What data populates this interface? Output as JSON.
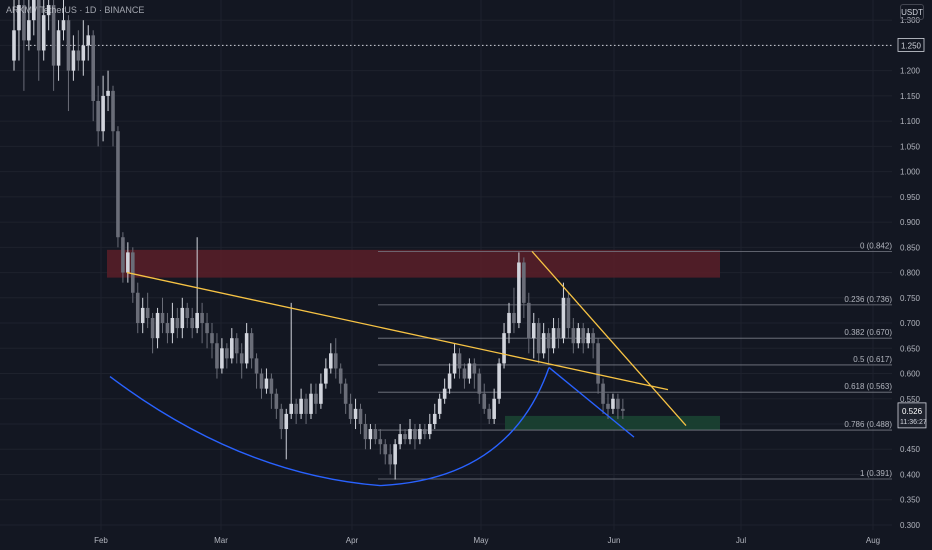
{
  "header": {
    "title": "ARKM / TetherUS · 1D · BINANCE",
    "unit": "USDT"
  },
  "colors": {
    "background": "#131722",
    "grid": "#1e222d",
    "up": "#d1d4dc",
    "down": "#6a6d78",
    "fib": "#787b86",
    "trendline": "#f7c344",
    "curve": "#2962ff",
    "resistance_zone": "#5a1f28",
    "support_zone": "#1b4332"
  },
  "chart_data": {
    "type": "candlestick",
    "x_ticks": [
      "Feb",
      "Mar",
      "Apr",
      "May",
      "Jun",
      "Jul",
      "Aug"
    ],
    "y_ticks": [
      "1.300",
      "1.250",
      "1.200",
      "1.150",
      "1.100",
      "1.050",
      "1.000",
      "0.950",
      "0.900",
      "0.850",
      "0.800",
      "0.750",
      "0.700",
      "0.650",
      "0.600",
      "0.550",
      "0.500",
      "0.450",
      "0.400",
      "0.350",
      "0.300"
    ],
    "ylim": [
      0.29,
      1.34
    ],
    "last_price": "0.526",
    "countdown": "11:36:27",
    "dotted_level": "1.250",
    "fib_levels": [
      {
        "label": "0 (0.842)",
        "value": 0.842
      },
      {
        "label": "0.236 (0.736)",
        "value": 0.736
      },
      {
        "label": "0.382 (0.670)",
        "value": 0.67
      },
      {
        "label": "0.5 (0.617)",
        "value": 0.617
      },
      {
        "label": "0.618 (0.563)",
        "value": 0.563
      },
      {
        "label": "0.786 (0.488)",
        "value": 0.488
      },
      {
        "label": "1 (0.391)",
        "value": 0.391
      }
    ],
    "resistance_zone": [
      0.79,
      0.845
    ],
    "support_zone": [
      0.488,
      0.516
    ],
    "candles": [
      [
        1.22,
        1.28,
        1.35,
        1.2
      ],
      [
        1.28,
        1.33,
        1.36,
        1.22
      ],
      [
        1.33,
        1.26,
        1.35,
        1.16
      ],
      [
        1.26,
        1.3,
        1.34,
        1.24
      ],
      [
        1.3,
        1.34,
        1.36,
        1.27
      ],
      [
        1.34,
        1.24,
        1.36,
        1.18
      ],
      [
        1.24,
        1.31,
        1.35,
        1.22
      ],
      [
        1.31,
        1.33,
        1.36,
        1.28
      ],
      [
        1.33,
        1.21,
        1.34,
        1.16
      ],
      [
        1.21,
        1.28,
        1.3,
        1.18
      ],
      [
        1.28,
        1.3,
        1.36,
        1.26
      ],
      [
        1.3,
        1.2,
        1.31,
        1.12
      ],
      [
        1.2,
        1.24,
        1.27,
        1.18
      ],
      [
        1.24,
        1.22,
        1.28,
        1.2
      ],
      [
        1.22,
        1.25,
        1.3,
        1.19
      ],
      [
        1.25,
        1.27,
        1.29,
        1.22
      ],
      [
        1.27,
        1.14,
        1.28,
        1.1
      ],
      [
        1.14,
        1.08,
        1.17,
        1.05
      ],
      [
        1.08,
        1.15,
        1.19,
        1.06
      ],
      [
        1.15,
        1.16,
        1.2,
        1.12
      ],
      [
        1.16,
        1.08,
        1.17,
        1.05
      ],
      [
        1.08,
        0.87,
        1.09,
        0.85
      ],
      [
        0.87,
        0.8,
        0.88,
        0.78
      ],
      [
        0.8,
        0.84,
        0.86,
        0.78
      ],
      [
        0.84,
        0.76,
        0.85,
        0.74
      ],
      [
        0.76,
        0.7,
        0.78,
        0.68
      ],
      [
        0.7,
        0.73,
        0.75,
        0.68
      ],
      [
        0.73,
        0.71,
        0.76,
        0.69
      ],
      [
        0.71,
        0.67,
        0.72,
        0.64
      ],
      [
        0.67,
        0.72,
        0.73,
        0.65
      ],
      [
        0.72,
        0.7,
        0.75,
        0.68
      ],
      [
        0.7,
        0.68,
        0.72,
        0.66
      ],
      [
        0.68,
        0.71,
        0.74,
        0.66
      ],
      [
        0.71,
        0.69,
        0.73,
        0.67
      ],
      [
        0.69,
        0.73,
        0.75,
        0.67
      ],
      [
        0.73,
        0.71,
        0.74,
        0.69
      ],
      [
        0.71,
        0.69,
        0.73,
        0.67
      ],
      [
        0.69,
        0.72,
        0.87,
        0.68
      ],
      [
        0.72,
        0.7,
        0.74,
        0.66
      ],
      [
        0.7,
        0.68,
        0.72,
        0.65
      ],
      [
        0.68,
        0.66,
        0.7,
        0.63
      ],
      [
        0.66,
        0.61,
        0.68,
        0.59
      ],
      [
        0.61,
        0.65,
        0.67,
        0.6
      ],
      [
        0.65,
        0.63,
        0.66,
        0.61
      ],
      [
        0.63,
        0.67,
        0.69,
        0.62
      ],
      [
        0.67,
        0.64,
        0.68,
        0.62
      ],
      [
        0.64,
        0.62,
        0.66,
        0.59
      ],
      [
        0.62,
        0.68,
        0.7,
        0.61
      ],
      [
        0.68,
        0.63,
        0.69,
        0.61
      ],
      [
        0.63,
        0.6,
        0.64,
        0.57
      ],
      [
        0.6,
        0.57,
        0.61,
        0.55
      ],
      [
        0.57,
        0.59,
        0.61,
        0.56
      ],
      [
        0.59,
        0.56,
        0.6,
        0.53
      ],
      [
        0.56,
        0.53,
        0.57,
        0.51
      ],
      [
        0.53,
        0.49,
        0.54,
        0.47
      ],
      [
        0.49,
        0.52,
        0.53,
        0.43
      ],
      [
        0.52,
        0.54,
        0.74,
        0.51
      ],
      [
        0.54,
        0.52,
        0.55,
        0.5
      ],
      [
        0.52,
        0.55,
        0.57,
        0.51
      ],
      [
        0.55,
        0.52,
        0.56,
        0.5
      ],
      [
        0.52,
        0.56,
        0.58,
        0.51
      ],
      [
        0.56,
        0.54,
        0.58,
        0.52
      ],
      [
        0.54,
        0.58,
        0.6,
        0.53
      ],
      [
        0.58,
        0.61,
        0.63,
        0.57
      ],
      [
        0.61,
        0.64,
        0.66,
        0.6
      ],
      [
        0.64,
        0.61,
        0.67,
        0.59
      ],
      [
        0.61,
        0.58,
        0.62,
        0.56
      ],
      [
        0.58,
        0.54,
        0.59,
        0.52
      ],
      [
        0.54,
        0.51,
        0.56,
        0.5
      ],
      [
        0.51,
        0.53,
        0.55,
        0.49
      ],
      [
        0.53,
        0.5,
        0.54,
        0.48
      ],
      [
        0.5,
        0.47,
        0.52,
        0.45
      ],
      [
        0.47,
        0.49,
        0.5,
        0.45
      ],
      [
        0.49,
        0.47,
        0.5,
        0.46
      ],
      [
        0.47,
        0.46,
        0.49,
        0.44
      ],
      [
        0.46,
        0.44,
        0.47,
        0.42
      ],
      [
        0.44,
        0.42,
        0.46,
        0.4
      ],
      [
        0.42,
        0.46,
        0.47,
        0.39
      ],
      [
        0.46,
        0.48,
        0.5,
        0.45
      ],
      [
        0.48,
        0.47,
        0.49,
        0.46
      ],
      [
        0.47,
        0.49,
        0.51,
        0.46
      ],
      [
        0.49,
        0.47,
        0.5,
        0.45
      ],
      [
        0.47,
        0.49,
        0.5,
        0.46
      ],
      [
        0.49,
        0.48,
        0.5,
        0.47
      ],
      [
        0.48,
        0.5,
        0.52,
        0.47
      ],
      [
        0.5,
        0.52,
        0.54,
        0.49
      ],
      [
        0.52,
        0.55,
        0.56,
        0.51
      ],
      [
        0.55,
        0.57,
        0.59,
        0.54
      ],
      [
        0.57,
        0.6,
        0.62,
        0.56
      ],
      [
        0.6,
        0.64,
        0.66,
        0.59
      ],
      [
        0.64,
        0.61,
        0.65,
        0.59
      ],
      [
        0.61,
        0.59,
        0.62,
        0.57
      ],
      [
        0.59,
        0.62,
        0.63,
        0.58
      ],
      [
        0.62,
        0.6,
        0.63,
        0.57
      ],
      [
        0.6,
        0.56,
        0.61,
        0.54
      ],
      [
        0.56,
        0.53,
        0.58,
        0.52
      ],
      [
        0.53,
        0.51,
        0.54,
        0.5
      ],
      [
        0.51,
        0.55,
        0.57,
        0.5
      ],
      [
        0.55,
        0.62,
        0.63,
        0.54
      ],
      [
        0.62,
        0.68,
        0.7,
        0.61
      ],
      [
        0.68,
        0.72,
        0.74,
        0.66
      ],
      [
        0.72,
        0.7,
        0.77,
        0.68
      ],
      [
        0.7,
        0.82,
        0.84,
        0.69
      ],
      [
        0.82,
        0.74,
        0.83,
        0.71
      ],
      [
        0.74,
        0.67,
        0.76,
        0.64
      ],
      [
        0.67,
        0.7,
        0.72,
        0.63
      ],
      [
        0.7,
        0.64,
        0.71,
        0.62
      ],
      [
        0.64,
        0.68,
        0.7,
        0.63
      ],
      [
        0.68,
        0.65,
        0.69,
        0.62
      ],
      [
        0.65,
        0.69,
        0.71,
        0.64
      ],
      [
        0.69,
        0.67,
        0.71,
        0.65
      ],
      [
        0.67,
        0.75,
        0.78,
        0.66
      ],
      [
        0.75,
        0.69,
        0.76,
        0.67
      ],
      [
        0.69,
        0.66,
        0.71,
        0.64
      ],
      [
        0.66,
        0.69,
        0.7,
        0.65
      ],
      [
        0.69,
        0.66,
        0.7,
        0.64
      ],
      [
        0.66,
        0.68,
        0.69,
        0.65
      ],
      [
        0.68,
        0.66,
        0.69,
        0.63
      ],
      [
        0.66,
        0.58,
        0.67,
        0.56
      ],
      [
        0.58,
        0.54,
        0.59,
        0.52
      ],
      [
        0.54,
        0.53,
        0.56,
        0.51
      ],
      [
        0.53,
        0.55,
        0.56,
        0.52
      ],
      [
        0.55,
        0.53,
        0.56,
        0.51
      ],
      [
        0.53,
        0.526,
        0.55,
        0.51
      ]
    ]
  }
}
